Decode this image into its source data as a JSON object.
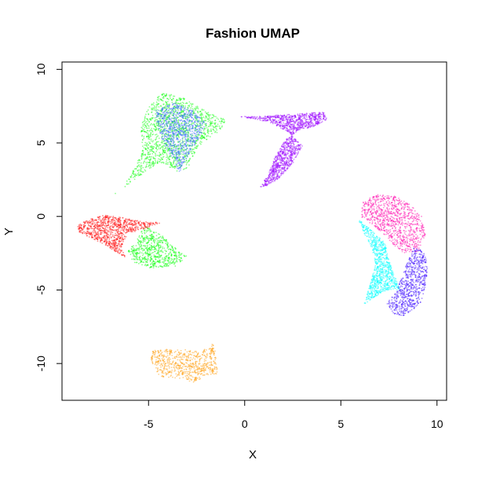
{
  "chart_data": {
    "type": "scatter",
    "title": "Fashion UMAP",
    "xlabel": "X",
    "ylabel": "Y",
    "xlim": [
      -9.5,
      10.5
    ],
    "ylim": [
      -12.5,
      10.5
    ],
    "xticks": [
      "-5",
      "0",
      "5",
      "10"
    ],
    "yticks": [
      "-10",
      "-5",
      "0",
      "5",
      "10"
    ],
    "xtick_values": [
      -5,
      0,
      5,
      10
    ],
    "ytick_values": [
      -10,
      -5,
      0,
      5,
      10
    ],
    "grid": false,
    "legend": "none",
    "box": true,
    "clusters": [
      {
        "color": "#ff9900",
        "polygon": [
          [
            -4.8,
            -9.1
          ],
          [
            -3.5,
            -9.0
          ],
          [
            -2.3,
            -9.2
          ],
          [
            -1.6,
            -8.6
          ],
          [
            -1.5,
            -9.5
          ],
          [
            -1.4,
            -10.7
          ],
          [
            -2.0,
            -10.8
          ],
          [
            -2.6,
            -11.3
          ],
          [
            -3.4,
            -11.0
          ],
          [
            -4.4,
            -10.9
          ],
          [
            -4.7,
            -10.3
          ],
          [
            -4.9,
            -9.6
          ]
        ]
      },
      {
        "color": "#9900ff",
        "polygon": [
          [
            4.1,
            7.1
          ],
          [
            4.3,
            6.6
          ],
          [
            3.6,
            6.1
          ],
          [
            2.9,
            5.9
          ],
          [
            2.1,
            5.2
          ],
          [
            1.6,
            4.1
          ],
          [
            1.1,
            2.6
          ],
          [
            0.8,
            2.0
          ],
          [
            1.2,
            2.1
          ],
          [
            1.8,
            2.6
          ],
          [
            2.5,
            3.6
          ],
          [
            3.0,
            4.8
          ],
          [
            2.3,
            5.7
          ],
          [
            1.3,
            6.4
          ],
          [
            0.2,
            6.7
          ],
          [
            -0.4,
            6.8
          ],
          [
            0.7,
            6.8
          ],
          [
            1.9,
            6.9
          ],
          [
            3.0,
            7.0
          ]
        ]
      },
      {
        "color": "#00ff00",
        "polygon": [
          [
            -5.3,
            6.6
          ],
          [
            -4.9,
            7.6
          ],
          [
            -4.3,
            8.4
          ],
          [
            -3.4,
            8.2
          ],
          [
            -2.6,
            7.6
          ],
          [
            -1.8,
            7.0
          ],
          [
            -1.0,
            6.6
          ],
          [
            -1.2,
            5.9
          ],
          [
            -1.9,
            5.3
          ],
          [
            -2.5,
            4.6
          ],
          [
            -3.0,
            3.2
          ],
          [
            -3.5,
            3.0
          ],
          [
            -4.4,
            3.7
          ],
          [
            -5.2,
            3.0
          ],
          [
            -6.0,
            2.2
          ],
          [
            -7.0,
            1.3
          ],
          [
            -6.4,
            1.9
          ],
          [
            -5.8,
            3.1
          ],
          [
            -5.3,
            4.6
          ],
          [
            -5.4,
            5.8
          ]
        ]
      },
      {
        "color": "#3366ff",
        "polygon": [
          [
            -4.6,
            7.3
          ],
          [
            -3.6,
            7.7
          ],
          [
            -2.7,
            7.2
          ],
          [
            -2.0,
            6.3
          ],
          [
            -2.3,
            5.5
          ],
          [
            -2.9,
            4.2
          ],
          [
            -3.4,
            3.0
          ],
          [
            -3.8,
            4.0
          ],
          [
            -4.3,
            5.2
          ],
          [
            -4.6,
            6.4
          ]
        ]
      },
      {
        "color": "#00ff00",
        "polygon": [
          [
            -5.2,
            -0.6
          ],
          [
            -4.3,
            -1.3
          ],
          [
            -3.3,
            -2.5
          ],
          [
            -3.0,
            -2.7
          ],
          [
            -3.6,
            -3.4
          ],
          [
            -4.9,
            -3.5
          ],
          [
            -5.8,
            -3.1
          ],
          [
            -6.1,
            -2.4
          ],
          [
            -5.6,
            -1.6
          ]
        ]
      },
      {
        "color": "#ff0000",
        "polygon": [
          [
            -8.7,
            -0.6
          ],
          [
            -8.1,
            -0.2
          ],
          [
            -7.3,
            0.1
          ],
          [
            -6.3,
            -0.1
          ],
          [
            -5.0,
            -0.4
          ],
          [
            -4.3,
            -0.4
          ],
          [
            -5.1,
            -0.8
          ],
          [
            -6.1,
            -1.2
          ],
          [
            -6.4,
            -2.0
          ],
          [
            -6.2,
            -2.8
          ],
          [
            -7.2,
            -2.0
          ],
          [
            -7.9,
            -1.5
          ],
          [
            -8.6,
            -1.1
          ]
        ]
      },
      {
        "color": "#ff00aa",
        "polygon": [
          [
            6.1,
            1.0
          ],
          [
            6.9,
            1.5
          ],
          [
            7.8,
            1.4
          ],
          [
            8.6,
            0.8
          ],
          [
            9.2,
            0.0
          ],
          [
            9.4,
            -1.3
          ],
          [
            9.0,
            -2.4
          ],
          [
            8.3,
            -2.5
          ],
          [
            7.8,
            -2.0
          ],
          [
            7.3,
            -1.3
          ],
          [
            6.7,
            -0.6
          ],
          [
            6.1,
            -0.1
          ]
        ]
      },
      {
        "color": "#00ffff",
        "polygon": [
          [
            5.9,
            -0.2
          ],
          [
            6.5,
            -0.8
          ],
          [
            7.3,
            -1.8
          ],
          [
            7.5,
            -3.0
          ],
          [
            7.8,
            -4.0
          ],
          [
            8.1,
            -5.0
          ],
          [
            7.4,
            -5.0
          ],
          [
            6.6,
            -5.6
          ],
          [
            6.2,
            -6.0
          ],
          [
            6.5,
            -4.7
          ],
          [
            6.8,
            -3.3
          ],
          [
            6.6,
            -2.1
          ],
          [
            6.2,
            -1.1
          ]
        ]
      },
      {
        "color": "#3300ff",
        "polygon": [
          [
            8.8,
            -2.1
          ],
          [
            9.4,
            -2.4
          ],
          [
            9.5,
            -3.6
          ],
          [
            9.4,
            -4.8
          ],
          [
            9.2,
            -5.8
          ],
          [
            8.7,
            -6.4
          ],
          [
            8.2,
            -6.8
          ],
          [
            7.7,
            -6.6
          ],
          [
            7.4,
            -5.9
          ],
          [
            7.9,
            -5.1
          ],
          [
            8.2,
            -4.0
          ],
          [
            8.5,
            -3.0
          ]
        ]
      }
    ]
  }
}
